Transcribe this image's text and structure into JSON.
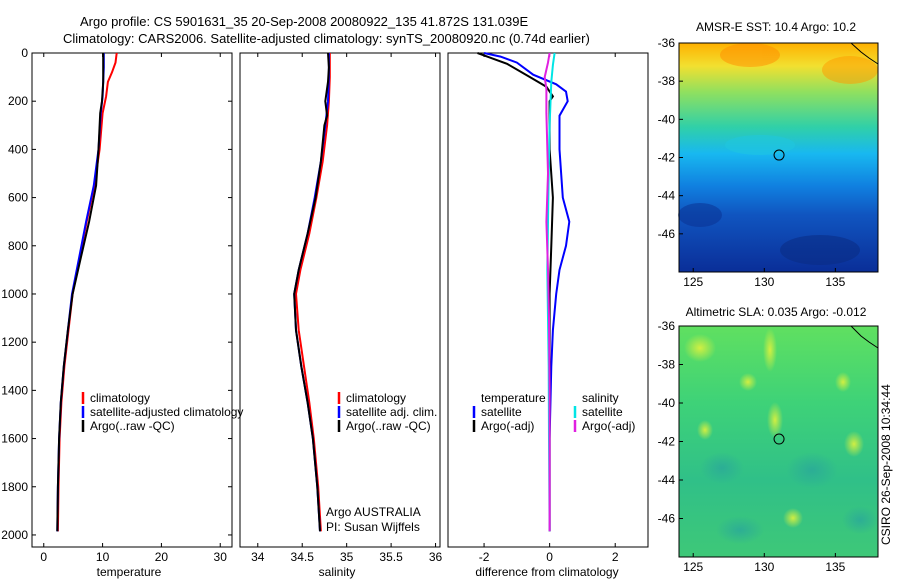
{
  "header": {
    "line1": "Argo profile: CS 5901631_35 20-Sep-2008 20080922_135 41.872S 131.039E",
    "line2": "Climatology: CARS2006. Satellite-adjusted climatology: synTS_20080920.nc (0.74d earlier)"
  },
  "footer": {
    "credit": "Argo AUSTRALIA",
    "pi": "PI: Susan Wijffels",
    "stamp": "CSIRO 26-Sep-2008 10:34:44"
  },
  "colors": {
    "climatology": "#ff0000",
    "satellite": "#0000ff",
    "argo": "#000000",
    "salinity_satellite": "#00e5e5",
    "salinity_argo": "#e020e0"
  },
  "chart_data": [
    {
      "type": "line",
      "xlabel": "temperature",
      "ylabel": "",
      "xlim": [
        -2,
        32
      ],
      "ylim": [
        2050,
        0
      ],
      "xticks": [
        0,
        10,
        20,
        30
      ],
      "yticks": [
        0,
        200,
        400,
        600,
        800,
        1000,
        1200,
        1400,
        1600,
        1800,
        2000
      ],
      "legend": [
        "climatology",
        "satellite-adjusted climatology",
        "Argo(..raw -QC)"
      ],
      "series": [
        {
          "name": "climatology",
          "color": "climatology",
          "points": [
            [
              12.4,
              0
            ],
            [
              12.2,
              40
            ],
            [
              11.6,
              80
            ],
            [
              10.9,
              120
            ],
            [
              10.6,
              180
            ],
            [
              10.0,
              250
            ],
            [
              9.5,
              400
            ],
            [
              8.6,
              550
            ],
            [
              7.3,
              700
            ],
            [
              6.1,
              850
            ],
            [
              4.9,
              1000
            ],
            [
              4.2,
              1150
            ],
            [
              3.5,
              1300
            ],
            [
              3.0,
              1450
            ],
            [
              2.7,
              1600
            ],
            [
              2.5,
              1800
            ],
            [
              2.4,
              1985
            ]
          ]
        },
        {
          "name": "satellite-adjusted climatology",
          "color": "satellite",
          "points": [
            [
              10.2,
              0
            ],
            [
              10.2,
              60
            ],
            [
              10.1,
              120
            ],
            [
              10.0,
              180
            ],
            [
              9.7,
              250
            ],
            [
              9.3,
              400
            ],
            [
              8.5,
              550
            ],
            [
              7.2,
              700
            ],
            [
              6.0,
              850
            ],
            [
              4.8,
              1000
            ],
            [
              4.1,
              1150
            ],
            [
              3.4,
              1300
            ],
            [
              2.9,
              1450
            ],
            [
              2.6,
              1600
            ],
            [
              2.4,
              1800
            ],
            [
              2.3,
              1985
            ]
          ]
        },
        {
          "name": "Argo(..raw -QC)",
          "color": "argo",
          "points": [
            [
              10.1,
              0
            ],
            [
              10.1,
              60
            ],
            [
              10.1,
              120
            ],
            [
              10.0,
              160
            ],
            [
              9.9,
              200
            ],
            [
              9.6,
              250
            ],
            [
              9.3,
              400
            ],
            [
              8.9,
              550
            ],
            [
              7.7,
              700
            ],
            [
              6.3,
              850
            ],
            [
              4.9,
              1000
            ],
            [
              4.1,
              1150
            ],
            [
              3.4,
              1300
            ],
            [
              2.9,
              1450
            ],
            [
              2.6,
              1600
            ],
            [
              2.4,
              1800
            ],
            [
              2.3,
              1985
            ]
          ]
        }
      ]
    },
    {
      "type": "line",
      "xlabel": "salinity",
      "ylabel": "",
      "xlim": [
        33.8,
        36.05
      ],
      "ylim": [
        2050,
        0
      ],
      "xticks": [
        34,
        34.5,
        35,
        35.5,
        36
      ],
      "xticklabels": [
        "34",
        "34.5",
        "35",
        "35.5",
        "36"
      ],
      "legend": [
        "climatology",
        "satellite adj. clim.",
        "Argo(..raw -QC)"
      ],
      "series": [
        {
          "name": "climatology",
          "color": "climatology",
          "points": [
            [
              34.81,
              0
            ],
            [
              34.81,
              100
            ],
            [
              34.8,
              200
            ],
            [
              34.78,
              300
            ],
            [
              34.73,
              450
            ],
            [
              34.66,
              600
            ],
            [
              34.58,
              750
            ],
            [
              34.48,
              900
            ],
            [
              34.43,
              1000
            ],
            [
              34.46,
              1150
            ],
            [
              34.52,
              1300
            ],
            [
              34.58,
              1450
            ],
            [
              34.63,
              1600
            ],
            [
              34.68,
              1800
            ],
            [
              34.71,
              1985
            ]
          ]
        },
        {
          "name": "satellite adj. clim.",
          "color": "satellite",
          "points": [
            [
              34.8,
              0
            ],
            [
              34.8,
              100
            ],
            [
              34.79,
              200
            ],
            [
              34.76,
              300
            ],
            [
              34.71,
              450
            ],
            [
              34.64,
              600
            ],
            [
              34.56,
              750
            ],
            [
              34.46,
              900
            ],
            [
              34.41,
              1000
            ],
            [
              34.43,
              1150
            ],
            [
              34.49,
              1300
            ],
            [
              34.56,
              1450
            ],
            [
              34.62,
              1600
            ],
            [
              34.67,
              1800
            ],
            [
              34.7,
              1985
            ]
          ]
        },
        {
          "name": "Argo(..raw -QC)",
          "color": "argo",
          "points": [
            [
              34.79,
              0
            ],
            [
              34.8,
              60
            ],
            [
              34.79,
              120
            ],
            [
              34.76,
              200
            ],
            [
              34.78,
              260
            ],
            [
              34.75,
              300
            ],
            [
              34.71,
              450
            ],
            [
              34.65,
              600
            ],
            [
              34.56,
              750
            ],
            [
              34.46,
              900
            ],
            [
              34.41,
              1000
            ],
            [
              34.43,
              1150
            ],
            [
              34.49,
              1300
            ],
            [
              34.56,
              1450
            ],
            [
              34.62,
              1600
            ],
            [
              34.67,
              1800
            ],
            [
              34.7,
              1985
            ]
          ]
        }
      ]
    },
    {
      "type": "line",
      "xlabel": "difference from climatology",
      "ylabel": "",
      "xlim": [
        -3.1,
        3.0
      ],
      "ylim": [
        2050,
        0
      ],
      "xticks": [
        -2,
        0,
        2
      ],
      "legend_groups": [
        {
          "title": "temperature",
          "entries": [
            "satellite",
            "Argo(-adj)"
          ]
        },
        {
          "title": "salinity",
          "entries": [
            "satellite",
            "Argo(-adj)"
          ]
        }
      ],
      "series": [
        {
          "name": "temperature satellite",
          "color": "satellite",
          "points": [
            [
              -2.0,
              0
            ],
            [
              -1.5,
              15
            ],
            [
              -1.0,
              40
            ],
            [
              -0.5,
              90
            ],
            [
              0.2,
              130
            ],
            [
              0.5,
              160
            ],
            [
              0.55,
              200
            ],
            [
              0.3,
              260
            ],
            [
              0.3,
              400
            ],
            [
              0.4,
              600
            ],
            [
              0.6,
              700
            ],
            [
              0.5,
              800
            ],
            [
              0.3,
              900
            ],
            [
              0.2,
              1000
            ],
            [
              0.1,
              1150
            ],
            [
              0.05,
              1300
            ],
            [
              0.0,
              1600
            ],
            [
              0.0,
              1985
            ]
          ]
        },
        {
          "name": "temperature Argo(-adj)",
          "color": "argo",
          "points": [
            [
              -2.2,
              0
            ],
            [
              -1.8,
              20
            ],
            [
              -1.3,
              45
            ],
            [
              -0.6,
              100
            ],
            [
              -0.1,
              140
            ],
            [
              0.1,
              180
            ],
            [
              0.0,
              200
            ],
            [
              0.0,
              400
            ],
            [
              0.1,
              600
            ],
            [
              0.05,
              800
            ],
            [
              0.0,
              1000
            ],
            [
              0.0,
              1300
            ],
            [
              0.0,
              1985
            ]
          ]
        },
        {
          "name": "salinity satellite",
          "color": "salinity_satellite",
          "points": [
            [
              0.15,
              0
            ],
            [
              0.1,
              50
            ],
            [
              0.05,
              120
            ],
            [
              0.0,
              300
            ],
            [
              -0.03,
              500
            ],
            [
              -0.05,
              700
            ],
            [
              -0.07,
              900
            ],
            [
              -0.05,
              1100
            ],
            [
              -0.03,
              1300
            ],
            [
              -0.02,
              1600
            ],
            [
              0.0,
              1985
            ]
          ]
        },
        {
          "name": "salinity Argo(-adj)",
          "color": "salinity_argo",
          "points": [
            [
              0.0,
              0
            ],
            [
              -0.05,
              40
            ],
            [
              -0.15,
              100
            ],
            [
              -0.1,
              150
            ],
            [
              -0.1,
              250
            ],
            [
              -0.05,
              500
            ],
            [
              -0.1,
              700
            ],
            [
              -0.05,
              900
            ],
            [
              -0.02,
              1100
            ],
            [
              0.0,
              1400
            ],
            [
              0.0,
              1985
            ]
          ]
        }
      ]
    },
    {
      "type": "heatmap",
      "title": "AMSR-E SST: 10.4 Argo: 10.2",
      "xlim": [
        124,
        138
      ],
      "ylim": [
        -48,
        -36
      ],
      "xticks": [
        125,
        130,
        135
      ],
      "yticks": [
        -36,
        -38,
        -40,
        -42,
        -44,
        -46
      ],
      "marker": {
        "lon": 131.039,
        "lat": -41.872
      },
      "bands": [
        {
          "lat": -36,
          "color": "#ffb000"
        },
        {
          "lat": -37.2,
          "color": "#f2e030"
        },
        {
          "lat": -38.6,
          "color": "#8ee060"
        },
        {
          "lat": -40.4,
          "color": "#30d0a8"
        },
        {
          "lat": -41.8,
          "color": "#18b8f0"
        },
        {
          "lat": -43.5,
          "color": "#1080e0"
        },
        {
          "lat": -45.0,
          "color": "#1055c0"
        },
        {
          "lat": -48,
          "color": "#0a2e98"
        }
      ]
    },
    {
      "type": "heatmap",
      "title": "Altimetric SLA: 0.035 Argo: -0.012",
      "xlim": [
        124,
        138
      ],
      "ylim": [
        -48,
        -36
      ],
      "xticks": [
        125,
        130,
        135
      ],
      "yticks": [
        -36,
        -38,
        -40,
        -42,
        -44,
        -46
      ],
      "marker": {
        "lon": 131.039,
        "lat": -41.872
      },
      "bands": [
        {
          "lat": -36,
          "color": "#60e060"
        },
        {
          "lat": -40,
          "color": "#3ed278"
        },
        {
          "lat": -44,
          "color": "#30c088"
        },
        {
          "lat": -48,
          "color": "#3ec878"
        }
      ]
    }
  ]
}
